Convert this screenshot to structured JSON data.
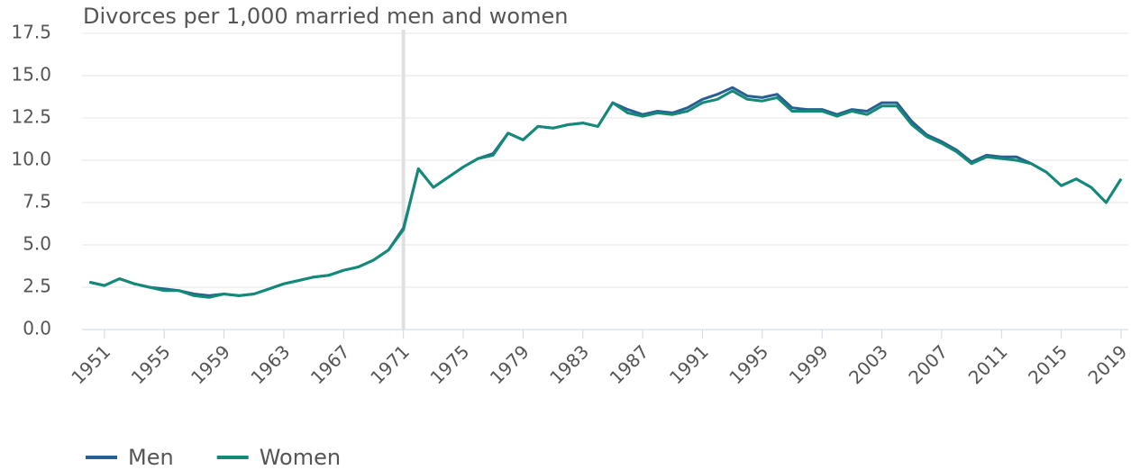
{
  "chart_data": {
    "type": "line",
    "title": "Divorces per 1,000 married men and women",
    "x": [
      1950,
      1951,
      1952,
      1953,
      1954,
      1955,
      1956,
      1957,
      1958,
      1959,
      1960,
      1961,
      1962,
      1963,
      1964,
      1965,
      1966,
      1967,
      1968,
      1969,
      1970,
      1971,
      1972,
      1973,
      1974,
      1975,
      1976,
      1977,
      1978,
      1979,
      1980,
      1981,
      1982,
      1983,
      1984,
      1985,
      1986,
      1987,
      1988,
      1989,
      1990,
      1991,
      1992,
      1993,
      1994,
      1995,
      1996,
      1997,
      1998,
      1999,
      2000,
      2001,
      2002,
      2003,
      2004,
      2005,
      2006,
      2007,
      2008,
      2009,
      2010,
      2011,
      2012,
      2013,
      2014,
      2015,
      2016,
      2017,
      2018,
      2019
    ],
    "series": [
      {
        "name": "Men",
        "color": "#2a5f94",
        "values": [
          2.8,
          2.6,
          3.0,
          2.7,
          2.5,
          2.4,
          2.3,
          2.1,
          2.0,
          2.1,
          2.0,
          2.1,
          2.4,
          2.7,
          2.9,
          3.1,
          3.2,
          3.5,
          3.7,
          4.1,
          4.7,
          6.0,
          9.5,
          8.4,
          9.0,
          9.6,
          10.1,
          10.4,
          11.6,
          11.2,
          12.0,
          11.9,
          12.1,
          12.2,
          12.0,
          13.4,
          13.0,
          12.7,
          12.9,
          12.8,
          13.1,
          13.6,
          13.9,
          14.3,
          13.8,
          13.7,
          13.9,
          13.1,
          13.0,
          13.0,
          12.7,
          13.0,
          12.9,
          13.4,
          13.4,
          12.3,
          11.5,
          11.1,
          10.6,
          9.9,
          10.3,
          10.2,
          10.2,
          9.8,
          9.3,
          8.5,
          8.9,
          8.4,
          7.5,
          8.9
        ]
      },
      {
        "name": "Women",
        "color": "#138a78",
        "values": [
          2.8,
          2.6,
          3.0,
          2.7,
          2.5,
          2.3,
          2.3,
          2.0,
          1.9,
          2.1,
          2.0,
          2.1,
          2.4,
          2.7,
          2.9,
          3.1,
          3.2,
          3.5,
          3.7,
          4.1,
          4.7,
          5.9,
          9.5,
          8.4,
          9.0,
          9.6,
          10.1,
          10.3,
          11.6,
          11.2,
          12.0,
          11.9,
          12.1,
          12.2,
          12.0,
          13.4,
          12.8,
          12.6,
          12.8,
          12.7,
          12.9,
          13.4,
          13.6,
          14.1,
          13.6,
          13.5,
          13.7,
          12.9,
          12.9,
          12.9,
          12.6,
          12.9,
          12.7,
          13.2,
          13.2,
          12.1,
          11.4,
          11.0,
          10.5,
          9.8,
          10.2,
          10.1,
          10.0,
          9.8,
          9.3,
          8.5,
          8.9,
          8.4,
          7.5,
          8.9
        ]
      }
    ],
    "xlim": [
      1949.5,
      2019
    ],
    "xticks": [
      1951,
      1955,
      1959,
      1963,
      1967,
      1971,
      1975,
      1979,
      1983,
      1987,
      1991,
      1995,
      1999,
      2003,
      2007,
      2011,
      2015,
      2019
    ],
    "ylim": [
      0,
      17.5
    ],
    "yticks": [
      {
        "value": 0,
        "label": "0.0"
      },
      {
        "value": 2.5,
        "label": "2.5"
      },
      {
        "value": 5,
        "label": "5.0"
      },
      {
        "value": 7.5,
        "label": "7.5"
      },
      {
        "value": 10,
        "label": "10.0"
      },
      {
        "value": 12.5,
        "label": "12.5"
      },
      {
        "value": 15,
        "label": "15.0"
      },
      {
        "value": 17.5,
        "label": "17.5"
      }
    ],
    "vline": 1971,
    "grid": true,
    "legend": "bottom-left"
  }
}
